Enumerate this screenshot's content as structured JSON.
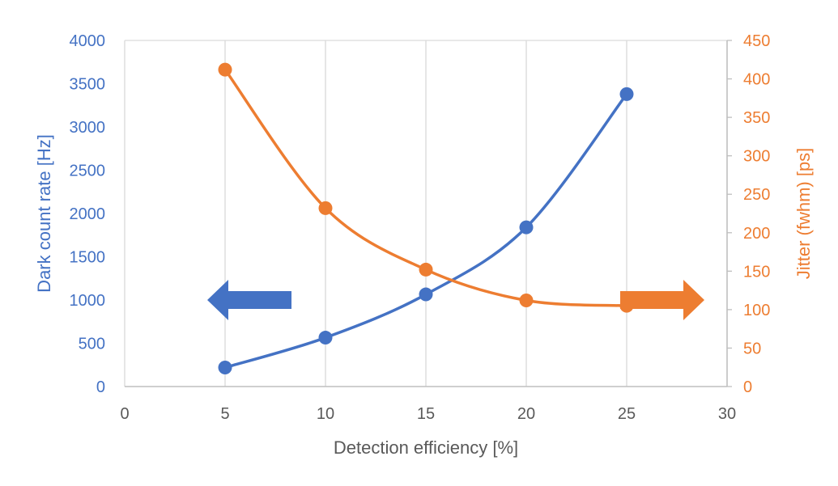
{
  "chart_data": {
    "type": "line",
    "title": "",
    "xlabel": "Detection efficiency [%]",
    "ylabel_left": "Dark count rate [Hz]",
    "ylabel_right": "Jitter (fwhm) [ps]",
    "xlim": [
      0,
      30
    ],
    "ylim_left": [
      0,
      4000
    ],
    "ylim_right": [
      0,
      450
    ],
    "x_ticks": [
      0,
      5,
      10,
      15,
      20,
      25,
      30
    ],
    "y_left_ticks": [
      0,
      500,
      1000,
      1500,
      2000,
      2500,
      3000,
      3500,
      4000
    ],
    "y_right_ticks": [
      0,
      50,
      100,
      150,
      200,
      250,
      300,
      350,
      400,
      450
    ],
    "grid": "vertical",
    "series": [
      {
        "axis": "left",
        "color": "#4472C4",
        "smooth": true,
        "x": [
          5,
          10,
          15,
          20,
          25
        ],
        "y": [
          220,
          565,
          1065,
          1840,
          3380
        ]
      },
      {
        "axis": "right",
        "color": "#ED7D31",
        "smooth": true,
        "x": [
          5,
          10,
          15,
          20,
          25
        ],
        "y": [
          412,
          232,
          152,
          112,
          105
        ]
      }
    ],
    "annotations": [
      {
        "type": "arrow",
        "direction": "left",
        "color": "#4472C4",
        "meaning": "left-axis"
      },
      {
        "type": "arrow",
        "direction": "right",
        "color": "#ED7D31",
        "meaning": "right-axis"
      }
    ]
  }
}
